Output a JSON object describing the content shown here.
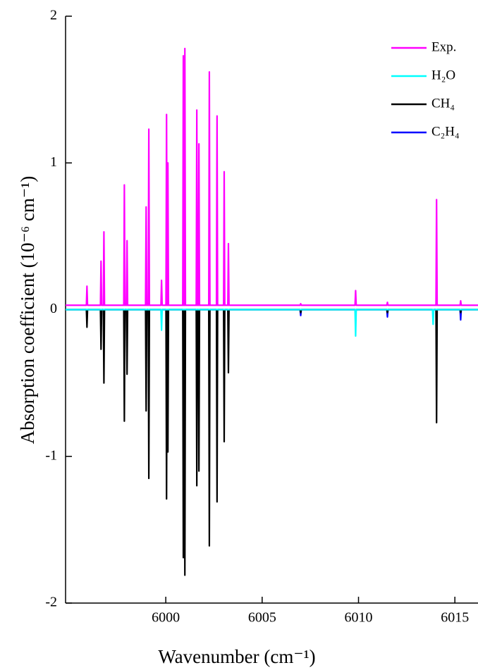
{
  "chart_data": {
    "type": "line",
    "xlabel": "Wavenumber (cm⁻¹)",
    "ylabel": "Absorption coefficient (10⁻⁶ cm⁻¹)",
    "xlim": [
      5994.8,
      6016.2
    ],
    "ylim": [
      -2,
      2
    ],
    "xticks": [
      6000,
      6005,
      6010,
      6015
    ],
    "yticks": [
      -2,
      -1,
      0,
      1,
      2
    ],
    "x": [
      5994.8,
      5995.88,
      5995.91,
      5995.94,
      5996.61,
      5996.64,
      5996.67,
      5996.76,
      5996.79,
      5996.82,
      5997.82,
      5997.85,
      5997.88,
      5997.96,
      5997.99,
      5998.02,
      5998.95,
      5998.98,
      5999.01,
      5999.09,
      5999.12,
      5999.15,
      5999.75,
      5999.78,
      5999.81,
      6000.01,
      6000.04,
      6000.07,
      6000.08,
      6000.11,
      6000.14,
      6000.88,
      6000.91,
      6000.94,
      6000.96,
      6000.99,
      6001.02,
      6001.58,
      6001.61,
      6001.64,
      6001.69,
      6001.72,
      6001.75,
      6002.23,
      6002.26,
      6002.29,
      6002.63,
      6002.66,
      6002.69,
      6003.0,
      6003.03,
      6003.06,
      6003.22,
      6003.25,
      6003.28,
      6006.97,
      6007.0,
      6007.03,
      6009.82,
      6009.85,
      6009.88,
      6011.47,
      6011.5,
      6011.53,
      6013.84,
      6013.87,
      6013.9,
      6014.02,
      6014.05,
      6014.08,
      6015.27,
      6015.3,
      6015.33,
      6016.2
    ],
    "series": [
      {
        "name": "Exp.",
        "color": "#ff00ff",
        "values": [
          0.03,
          0.03,
          0.16,
          0.03,
          0.03,
          0.33,
          0.03,
          0.03,
          0.53,
          0.03,
          0.03,
          0.85,
          0.03,
          0.03,
          0.47,
          0.03,
          0.03,
          0.7,
          0.03,
          0.03,
          1.23,
          0.03,
          0.03,
          0.2,
          0.03,
          0.03,
          1.33,
          0.03,
          0.03,
          1.0,
          0.03,
          0.03,
          1.73,
          0.03,
          0.03,
          1.78,
          0.03,
          0.03,
          1.36,
          0.03,
          0.03,
          1.13,
          0.03,
          0.03,
          1.62,
          0.03,
          0.03,
          1.32,
          0.03,
          0.03,
          0.94,
          0.03,
          0.03,
          0.45,
          0.03,
          0.03,
          0.04,
          0.03,
          0.03,
          0.13,
          0.03,
          0.03,
          0.05,
          0.03,
          0.03,
          0.03,
          0.03,
          0.03,
          0.75,
          0.03,
          0.03,
          0.06,
          0.03,
          0.03
        ]
      },
      {
        "name": "H₂O",
        "color": "#00ffff",
        "values": [
          0,
          0,
          0,
          0,
          0,
          0,
          0,
          0,
          0,
          0,
          0,
          0,
          0,
          0,
          0,
          0,
          0,
          0,
          0,
          0,
          0,
          0,
          0,
          -0.14,
          0,
          0,
          0,
          0,
          0,
          0,
          0,
          0,
          0,
          0,
          0,
          0,
          0,
          0,
          0,
          0,
          0,
          0,
          0,
          0,
          0,
          0,
          0,
          0,
          0,
          0,
          0,
          0,
          0,
          0,
          0,
          0,
          0,
          0,
          0,
          -0.18,
          0,
          0,
          0,
          0,
          0,
          -0.1,
          0,
          0,
          0,
          0,
          0,
          0,
          0,
          0
        ]
      },
      {
        "name": "CH₄",
        "color": "#000000",
        "values": [
          0,
          0,
          -0.12,
          0,
          0,
          -0.27,
          0,
          0,
          -0.5,
          0,
          0,
          -0.76,
          0,
          0,
          -0.44,
          0,
          0,
          -0.69,
          0,
          0,
          -1.15,
          0,
          0,
          -0.03,
          0,
          0,
          -1.29,
          0,
          0,
          -0.97,
          0,
          0,
          -1.69,
          0,
          0,
          -1.81,
          0,
          0,
          -1.2,
          0,
          0,
          -1.1,
          0,
          0,
          -1.61,
          0,
          0,
          -1.31,
          0,
          0,
          -0.9,
          0,
          0,
          -0.43,
          0,
          0,
          -0.02,
          0,
          0,
          -0.02,
          0,
          0,
          -0.02,
          0,
          0,
          -0.02,
          0,
          0,
          -0.77,
          0,
          0,
          -0.02,
          0,
          0
        ]
      },
      {
        "name": "C₂H₄",
        "color": "#0000ff",
        "values": [
          0,
          0,
          -0.02,
          0,
          0,
          -0.02,
          0,
          0,
          -0.02,
          0,
          0,
          -0.03,
          0,
          0,
          -0.06,
          0,
          0,
          -0.03,
          0,
          0,
          -0.05,
          0,
          0,
          -0.02,
          0,
          0,
          -0.03,
          0,
          0,
          -0.03,
          0,
          0,
          -0.06,
          0,
          0,
          -0.03,
          0,
          0,
          -0.03,
          0,
          0,
          -0.03,
          0,
          0,
          -0.03,
          0,
          0,
          -0.03,
          0,
          0,
          -0.03,
          0,
          0,
          -0.03,
          0,
          0,
          -0.04,
          0,
          0,
          -0.04,
          0,
          0,
          -0.05,
          0,
          0,
          -0.03,
          0,
          0,
          -0.03,
          0,
          0,
          -0.07,
          0,
          0
        ]
      }
    ],
    "legend": "upper right"
  }
}
